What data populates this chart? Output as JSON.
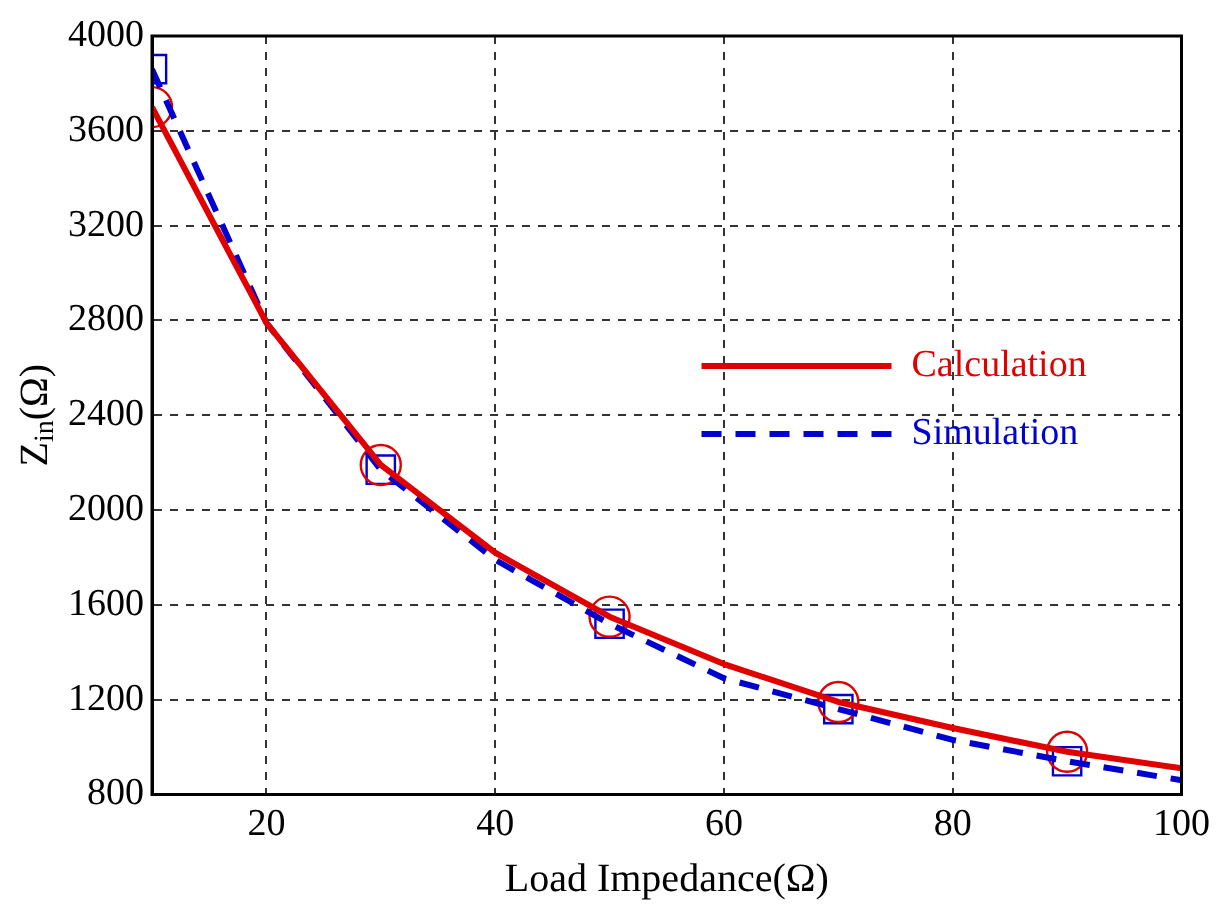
{
  "chart_data": {
    "type": "line",
    "xlabel": "Load Impedance(Ω)",
    "ylabel": "Z$_{in}$(Ω)",
    "x": [
      10,
      20,
      30,
      40,
      50,
      60,
      70,
      80,
      90,
      100
    ],
    "series": [
      {
        "name": "Calculation",
        "color": "#e00000",
        "type": "line",
        "marker": "none",
        "line_style": "solid",
        "values": [
          3700,
          2790,
          2190,
          1820,
          1550,
          1350,
          1190,
          1080,
          980,
          910
        ]
      },
      {
        "name": "Simulation",
        "color": "#0000d0",
        "type": "line",
        "marker": "none",
        "line_style": "dashed",
        "values": [
          3860,
          2790,
          2170,
          1790,
          1520,
          1290,
          1160,
          1030,
          940,
          860
        ]
      },
      {
        "color": "#e00000",
        "type": "scatter",
        "marker": "circle",
        "x": [
          10,
          30,
          50,
          70,
          90
        ],
        "values": [
          3700,
          2190,
          1550,
          1190,
          980
        ]
      },
      {
        "color": "#0000d0",
        "type": "scatter",
        "marker": "square",
        "x": [
          10,
          30,
          50,
          70,
          90
        ],
        "values": [
          3860,
          2170,
          1520,
          1160,
          940
        ]
      }
    ],
    "xlim": [
      10,
      100
    ],
    "xticks": [
      {
        "value": 10,
        "label": null
      },
      20,
      40,
      60,
      80,
      100
    ],
    "ylim": [
      800,
      4000
    ],
    "yticks": [
      800,
      1200,
      1600,
      2000,
      2400,
      2800,
      3200,
      3600,
      4000
    ],
    "grid": true,
    "legend": "right"
  }
}
